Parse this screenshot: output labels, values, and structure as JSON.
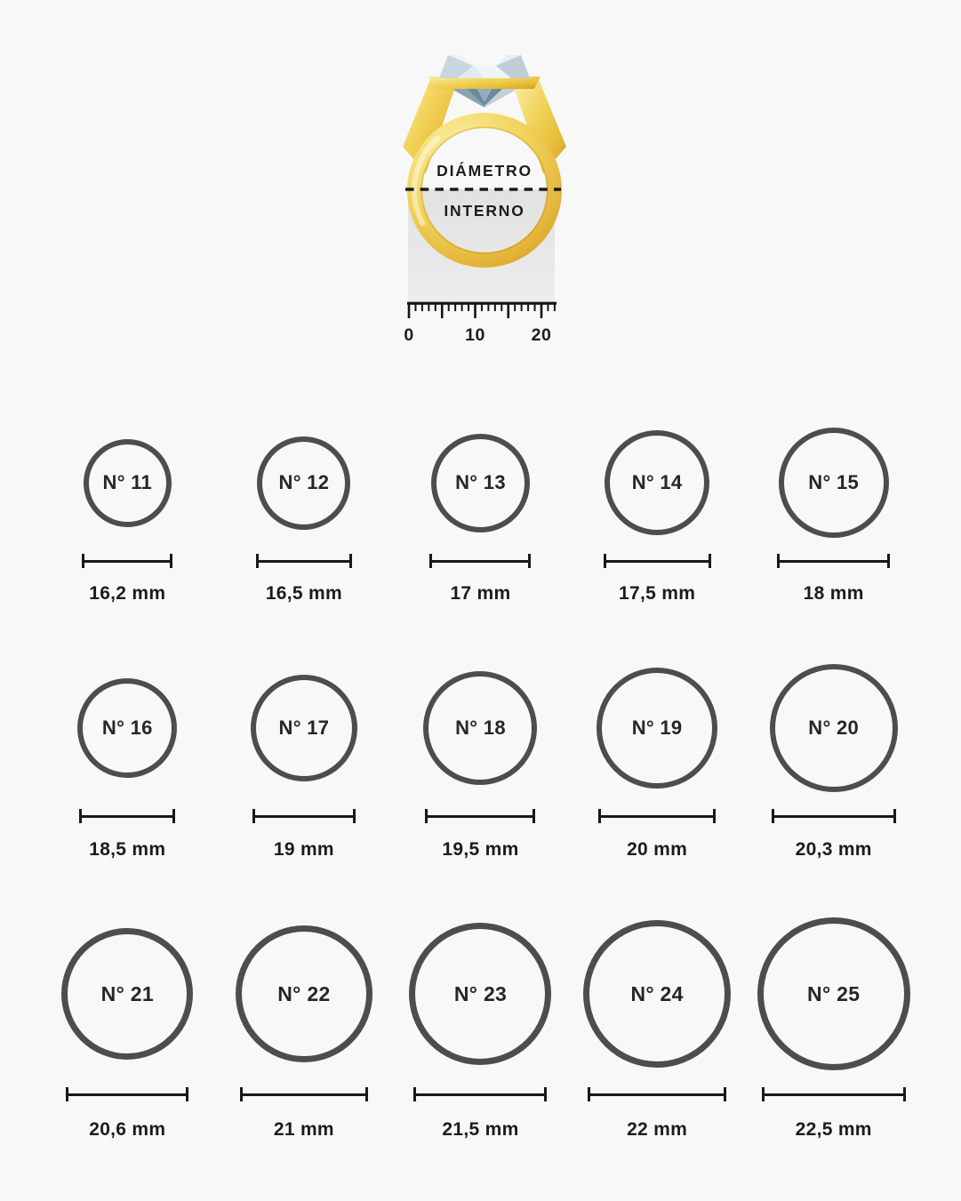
{
  "page": {
    "background": "#f8f8f8"
  },
  "ring_illustration": {
    "icon": "gold-diamond-ring-icon",
    "label_line1": "DIÁMETRO",
    "label_line2": "INTERNO",
    "ruler": {
      "tick_labels": [
        "0",
        "10",
        "20"
      ],
      "tick_count_mm": 22,
      "major_tick_every": 5
    }
  },
  "sizes": {
    "unit": "mm",
    "rows": [
      {
        "items": [
          {
            "label": "N° 11",
            "diameter": "16,2 mm",
            "mm": 16.2
          },
          {
            "label": "N° 12",
            "diameter": "16,5 mm",
            "mm": 16.5
          },
          {
            "label": "N° 13",
            "diameter": "17 mm",
            "mm": 17
          },
          {
            "label": "N° 14",
            "diameter": "17,5 mm",
            "mm": 17.5
          },
          {
            "label": "N° 15",
            "diameter": "18 mm",
            "mm": 18
          }
        ]
      },
      {
        "items": [
          {
            "label": "N° 16",
            "diameter": "18,5 mm",
            "mm": 18.5
          },
          {
            "label": "N° 17",
            "diameter": "19 mm",
            "mm": 19
          },
          {
            "label": "N° 18",
            "diameter": "19,5 mm",
            "mm": 19.5
          },
          {
            "label": "N° 19",
            "diameter": "20 mm",
            "mm": 20
          },
          {
            "label": "N° 20",
            "diameter": "20,3 mm",
            "mm": 20.3
          }
        ]
      },
      {
        "items": [
          {
            "label": "N° 21",
            "diameter": "20,6 mm",
            "mm": 20.6
          },
          {
            "label": "N° 22",
            "diameter": "21 mm",
            "mm": 21
          },
          {
            "label": "N° 23",
            "diameter": "21,5 mm",
            "mm": 21.5
          },
          {
            "label": "N° 24",
            "diameter": "22 mm",
            "mm": 22
          },
          {
            "label": "N° 25",
            "diameter": "22,5 mm",
            "mm": 22.5
          }
        ]
      }
    ]
  },
  "colors": {
    "background": "#f8f8f8",
    "circle_stroke": "#4d4d4d",
    "number_text": "#262626",
    "measure_line": "#191919",
    "label_text": "#1d1d1d",
    "gold": "#f2d45c",
    "gold_light": "#faeda6",
    "gold_dark": "#d49e28",
    "diamond_light": "#f6f9fa",
    "diamond_dark": "#6d8a9c",
    "strip_gray": "#e6e6e6",
    "ruler_black": "#151515"
  }
}
